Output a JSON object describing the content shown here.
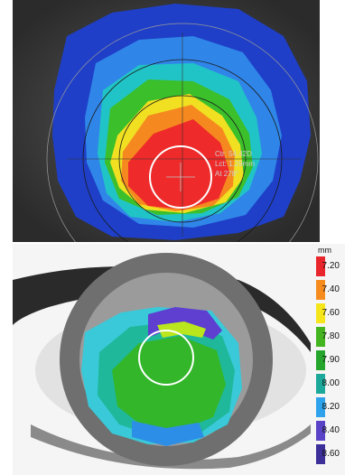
{
  "top_map": {
    "annotations": [
      "Ctr: 54.42D",
      "Lct: 1.29mm",
      "At 278°"
    ]
  },
  "scale": {
    "unit": "mm",
    "ticks": [
      {
        "label": "7.20",
        "color": "#e8262b"
      },
      {
        "label": "7.40",
        "color": "#f78c1e"
      },
      {
        "label": "7.60",
        "color": "#f7e51c"
      },
      {
        "label": "7.80",
        "color": "#45b51f"
      },
      {
        "label": "7.90",
        "color": "#26a52d"
      },
      {
        "label": "8.00",
        "color": "#1ca89a"
      },
      {
        "label": "8.20",
        "color": "#2ea2ec"
      },
      {
        "label": "8.40",
        "color": "#5b43c8"
      },
      {
        "label": "8.60",
        "color": "#3c2f99"
      }
    ]
  }
}
